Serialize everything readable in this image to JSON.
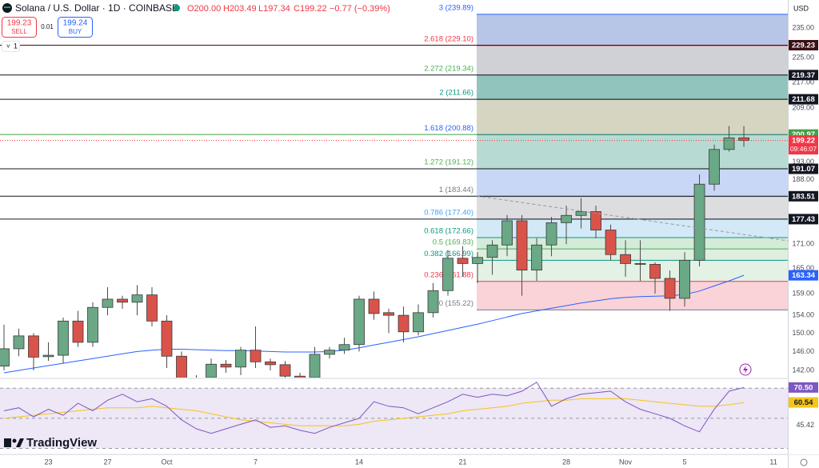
{
  "chart_data": {
    "type": "candlestick",
    "title": "Solana / U.S. Dollar · 1D · COINBASE",
    "header": {
      "open": "O200.00",
      "high": "H203.49",
      "low": "L197.34",
      "close": "C199.22",
      "change": "−0.77 (−0.39%)"
    },
    "trade": {
      "sell_price": "199.23",
      "sell": "SELL",
      "spread": "0.01",
      "buy_price": "199.24",
      "buy": "BUY"
    },
    "interval_button": "1",
    "currency": "USD",
    "brand": "TradingView",
    "current_time": "09:46:07",
    "log_scale": true,
    "xlim": [
      -0.27,
      52.97
    ],
    "xticks": [
      {
        "value": 3,
        "label": "23"
      },
      {
        "value": 7,
        "label": "27"
      },
      {
        "value": 11,
        "label": "Oct"
      },
      {
        "value": 17,
        "label": "7"
      },
      {
        "value": 24,
        "label": "14"
      },
      {
        "value": 31,
        "label": "21"
      },
      {
        "value": 38,
        "label": "28"
      },
      {
        "value": 42,
        "label": "Nov"
      },
      {
        "value": 46,
        "label": "5"
      },
      {
        "value": 52,
        "label": "11"
      }
    ],
    "ylim": [
      140.5,
      245
    ],
    "yticks": [
      {
        "value": 235,
        "label": "235.00"
      },
      {
        "value": 225,
        "label": "225.00"
      },
      {
        "value": 217,
        "label": "217.00"
      },
      {
        "value": 209,
        "label": "209.00"
      },
      {
        "value": 193,
        "label": "193.00"
      },
      {
        "value": 188,
        "label": "188.00"
      },
      {
        "value": 171,
        "label": "171.00"
      },
      {
        "value": 165,
        "label": "165.00"
      },
      {
        "value": 159,
        "label": "159.00"
      },
      {
        "value": 154,
        "label": "154.00"
      },
      {
        "value": 150,
        "label": "150.00"
      },
      {
        "value": 146,
        "label": "146.00"
      },
      {
        "value": 142,
        "label": "142.00"
      }
    ],
    "up_color": "#6aa886",
    "down_color": "#d9534a",
    "open": [
      142.9,
      146.6,
      149.4,
      144.9,
      145.2,
      152.7,
      148,
      155.8,
      157.7,
      157,
      158.7,
      152.7,
      145,
      140,
      140.5,
      143.3,
      142.7,
      146.3,
      143.8,
      143.2,
      140.8,
      140.5,
      145.4,
      146.3,
      147.5,
      157.7,
      154.6,
      154,
      150.3,
      154.6,
      159.7,
      167.5,
      166.2,
      167.7,
      170.8,
      177,
      164.6,
      170.8,
      176.5,
      178.4,
      179.4,
      174.6,
      168.4,
      166.2,
      166,
      162.6,
      157.9,
      167,
      186.8,
      196.6,
      200
    ],
    "high": [
      151.9,
      151,
      150,
      148,
      153.5,
      155,
      157,
      160.5,
      158.5,
      161,
      160.5,
      154,
      146,
      141,
      144.5,
      144.2,
      147,
      151.5,
      144.5,
      144,
      141.5,
      147,
      147,
      149,
      158.5,
      159.5,
      155.5,
      156,
      156.5,
      161.5,
      169.5,
      170.5,
      169,
      172,
      178.5,
      178.5,
      172.5,
      178,
      181,
      183,
      181,
      176,
      172,
      172,
      166.5,
      164.5,
      169,
      189.5,
      198,
      203.5,
      203.49
    ],
    "low": [
      142,
      145,
      142,
      144,
      143.5,
      147,
      147,
      154,
      155.5,
      154,
      151.5,
      142.5,
      138,
      137,
      139,
      141.5,
      141,
      142.5,
      142,
      139.5,
      139,
      139,
      144.5,
      145.5,
      146,
      153,
      150,
      148,
      149.5,
      153.5,
      158.5,
      163,
      161.5,
      163.5,
      168,
      158.5,
      162,
      168,
      171,
      175,
      172.5,
      167,
      163,
      162,
      159,
      155,
      156,
      165.5,
      185,
      196,
      197.34
    ],
    "close": [
      146.6,
      149.4,
      144.8,
      145.2,
      152.7,
      148,
      155.8,
      157.7,
      157,
      158.7,
      152.7,
      145,
      140,
      138.5,
      143.3,
      142.7,
      146.3,
      143.8,
      143.2,
      140.8,
      140,
      145.4,
      146.3,
      147.5,
      157.7,
      154.4,
      154,
      150.3,
      154.6,
      159.7,
      167.5,
      166.2,
      167.7,
      170.8,
      177,
      164.6,
      170.8,
      176.5,
      178.4,
      179.4,
      174.6,
      168.4,
      166.2,
      166,
      162.6,
      157.9,
      167,
      186.8,
      196.6,
      199.99,
      199.22
    ],
    "ma": {
      "color": "#2962ff",
      "values": [
        141.5,
        142,
        142.5,
        143,
        143.5,
        144,
        144.5,
        145,
        145.5,
        146,
        146.3,
        146.5,
        146.5,
        146.4,
        146.3,
        146.2,
        146.2,
        146.1,
        146,
        145.9,
        145.9,
        145.9,
        146,
        146.3,
        146.8,
        147.4,
        148,
        148.6,
        149.2,
        149.9,
        150.6,
        151.3,
        152,
        152.8,
        153.6,
        154.4,
        155,
        155.6,
        156.2,
        156.8,
        157.3,
        157.8,
        158.1,
        158.3,
        158.4,
        158.5,
        158.8,
        159.6,
        160.8,
        162,
        163.34
      ]
    },
    "price_lines": [
      {
        "value": 229.23,
        "color": "#3b0f14"
      },
      {
        "value": 219.37,
        "color": "#131722"
      },
      {
        "value": 211.68,
        "color": "#131722"
      },
      {
        "value": 200.97,
        "color": "#43a047"
      },
      {
        "value": 191.07,
        "color": "#131722"
      },
      {
        "value": 183.51,
        "color": "#131722"
      },
      {
        "value": 177.43,
        "color": "#131722"
      }
    ],
    "current_color": "#f23645",
    "fib_levels": [
      {
        "value": 239.89,
        "label": "3 (239.89)",
        "color": "#2962ff",
        "fill": "#b7c5e6"
      },
      {
        "value": 229.1,
        "label": "2.618 (229.10)",
        "color": "#f23645",
        "fill": "#cfd1d6"
      },
      {
        "value": 219.34,
        "label": "2.272 (219.34)",
        "color": "#4caf50",
        "fill": "#91c4bd"
      },
      {
        "value": 211.66,
        "label": "2 (211.66)",
        "color": "#089981",
        "fill": "#d5d5c1"
      },
      {
        "value": 200.88,
        "label": "1.618 (200.88)",
        "color": "#2962ff",
        "fill": "#b7dbd3"
      },
      {
        "value": 191.12,
        "label": "1.272 (191.12)",
        "color": "#4caf50",
        "fill": "#c9d7f7"
      },
      {
        "value": 183.44,
        "label": "1 (183.44)",
        "color": "#787b86",
        "fill": "#dddddf"
      },
      {
        "value": 177.4,
        "label": "0.786 (177.40)",
        "color": "#42a5f5",
        "fill": "#d3e9f7"
      },
      {
        "value": 172.66,
        "label": "0.618 (172.66)",
        "color": "#089981",
        "fill": "#d4ebd9"
      },
      {
        "value": 169.83,
        "label": "0.5 (169.83)",
        "color": "#4caf50",
        "fill": "#deeedf"
      },
      {
        "value": 166.99,
        "label": "0.382 (166.99)",
        "color": "#089981",
        "fill": "#e4f1e5"
      },
      {
        "value": 161.88,
        "label": "0.236 (161.88)",
        "color": "#f23645",
        "fill": "#f9d3d7"
      },
      {
        "value": 155.22,
        "label": "0 (155.22)",
        "color": "#787b86"
      }
    ],
    "rsi": {
      "ylim": [
        26,
        76
      ],
      "yticks": [
        45.42
      ],
      "levels": [
        70,
        50,
        30
      ],
      "series": [
        {
          "color": "#7e57c2",
          "last_label": "70.50",
          "values": [
            55,
            57,
            51,
            56,
            52,
            60,
            55,
            62,
            66,
            61,
            63,
            58,
            49,
            43,
            40,
            43,
            46,
            49,
            44,
            45,
            42,
            40,
            44,
            47,
            50,
            61,
            58,
            57,
            53,
            57,
            61,
            66,
            64,
            66,
            65,
            68,
            74,
            58,
            63,
            66,
            67,
            68,
            61,
            56,
            53,
            50,
            45,
            41,
            56,
            68,
            70.5
          ]
        },
        {
          "color": "#f5c518",
          "last_label": "60.54",
          "values": [
            50,
            51,
            52,
            53,
            54,
            55,
            56,
            57,
            57,
            57,
            58,
            57,
            56,
            55,
            53,
            51,
            49,
            48,
            47,
            46,
            45,
            45,
            45,
            45,
            46,
            48,
            49,
            50,
            51,
            52,
            53,
            55,
            56,
            57,
            58,
            60,
            61,
            62,
            62,
            63,
            63,
            63,
            63,
            62,
            61,
            60,
            59,
            58,
            58,
            59,
            60.54
          ]
        }
      ]
    }
  }
}
